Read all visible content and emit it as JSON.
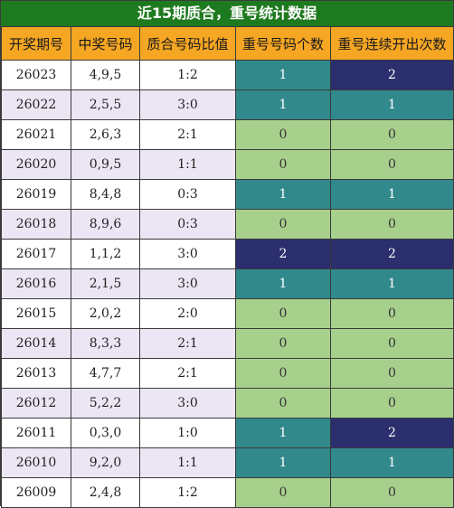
{
  "title": "近15期质合，重号统计数据",
  "headers": [
    "开奖期号",
    "中奖号码",
    "质合号码比值",
    "重号号码个数",
    "重号连续开出次数"
  ],
  "rows": [
    {
      "issue": "26023",
      "number": "4,9,5",
      "ratio": "1:2",
      "repeat": "1",
      "streak": "2"
    },
    {
      "issue": "26022",
      "number": "2,5,5",
      "ratio": "3:0",
      "repeat": "1",
      "streak": "1"
    },
    {
      "issue": "26021",
      "number": "2,6,3",
      "ratio": "2:1",
      "repeat": "0",
      "streak": "0"
    },
    {
      "issue": "26020",
      "number": "0,9,5",
      "ratio": "1:1",
      "repeat": "0",
      "streak": "0"
    },
    {
      "issue": "26019",
      "number": "8,4,8",
      "ratio": "0:3",
      "repeat": "1",
      "streak": "1"
    },
    {
      "issue": "26018",
      "number": "8,9,6",
      "ratio": "0:3",
      "repeat": "0",
      "streak": "0"
    },
    {
      "issue": "26017",
      "number": "1,1,2",
      "ratio": "3:0",
      "repeat": "2",
      "streak": "2"
    },
    {
      "issue": "26016",
      "number": "2,1,5",
      "ratio": "3:0",
      "repeat": "1",
      "streak": "1"
    },
    {
      "issue": "26015",
      "number": "2,0,2",
      "ratio": "2:0",
      "repeat": "0",
      "streak": "0"
    },
    {
      "issue": "26014",
      "number": "8,3,3",
      "ratio": "2:1",
      "repeat": "0",
      "streak": "0"
    },
    {
      "issue": "26013",
      "number": "4,7,7",
      "ratio": "2:1",
      "repeat": "0",
      "streak": "0"
    },
    {
      "issue": "26012",
      "number": "5,2,2",
      "ratio": "3:0",
      "repeat": "0",
      "streak": "0"
    },
    {
      "issue": "26011",
      "number": "0,3,0",
      "ratio": "1:0",
      "repeat": "1",
      "streak": "2"
    },
    {
      "issue": "26010",
      "number": "9,2,0",
      "ratio": "1:1",
      "repeat": "1",
      "streak": "1"
    },
    {
      "issue": "26009",
      "number": "2,4,8",
      "ratio": "1:2",
      "repeat": "0",
      "streak": "0"
    }
  ],
  "colors": {
    "title_bg": "#1e7a1e",
    "header_bg": "#f5a623",
    "value_0": "#a8d08d",
    "value_1": "#31898c",
    "value_2": "#2b2f6e",
    "row_alt": "#ece6f4"
  }
}
